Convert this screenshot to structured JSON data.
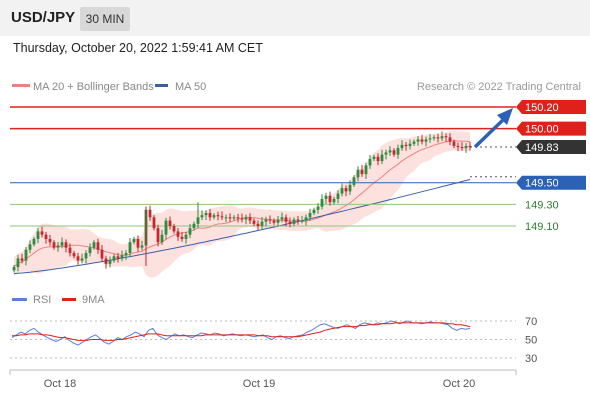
{
  "header": {
    "symbol": "USD/JPY",
    "timeframe": "30 MIN"
  },
  "datetime": "Thursday, October 20, 2022 1:59:41 AM CET",
  "legend": {
    "ma20_label": "MA 20 + Bollinger Bands",
    "ma50_label": "MA 50"
  },
  "credit": "Research © 2022 Trading Central",
  "colors": {
    "resistance": "#e0201b",
    "pivot": "#2b62b8",
    "support": "#8fc57f",
    "ma20": "#f08080",
    "ma50": "#3a5fa8",
    "bbands": "#fcd9d6",
    "candle_up": "#2e8b3f",
    "candle_down": "#c7262b",
    "rsi": "#5b7fe0",
    "rsi_ma": "#e0201b",
    "arrow": "#2b62b8",
    "current": "#333333"
  },
  "levels": [
    {
      "value": 150.2,
      "label": "150.20",
      "type": "resistance"
    },
    {
      "value": 150.0,
      "label": "150.00",
      "type": "resistance"
    },
    {
      "value": 149.83,
      "label": "149.83",
      "type": "current"
    },
    {
      "value": 149.5,
      "label": "149.50",
      "type": "pivot"
    },
    {
      "value": 149.3,
      "label": "149.30",
      "type": "support"
    },
    {
      "value": 149.1,
      "label": "149.10",
      "type": "support"
    }
  ],
  "chart_data": {
    "type": "candlestick",
    "ylim": [
      148.65,
      150.25
    ],
    "x_ticks": [
      "Oct 18",
      "Oct 19",
      "Oct 20"
    ],
    "closes": [
      148.72,
      148.8,
      148.78,
      148.88,
      148.93,
      148.98,
      149.05,
      149.02,
      148.98,
      148.95,
      148.9,
      148.92,
      148.95,
      148.9,
      148.85,
      148.82,
      148.78,
      148.8,
      148.85,
      148.9,
      148.95,
      148.88,
      148.8,
      148.75,
      148.78,
      148.82,
      148.8,
      148.83,
      148.85,
      148.95,
      148.98,
      148.9,
      148.92,
      149.25,
      149.18,
      149.08,
      148.95,
      149.02,
      149.15,
      149.1,
      149.05,
      149.0,
      148.98,
      149.02,
      149.08,
      149.12,
      149.18,
      149.2,
      149.22,
      149.18,
      149.2,
      149.19,
      149.18,
      149.18,
      149.17,
      149.18,
      149.17,
      149.16,
      149.18,
      149.15,
      149.12,
      149.1,
      149.14,
      149.16,
      149.15,
      149.13,
      149.16,
      149.18,
      149.14,
      149.12,
      149.16,
      149.15,
      149.15,
      149.18,
      149.22,
      149.25,
      149.28,
      149.35,
      149.38,
      149.32,
      149.35,
      149.4,
      149.45,
      149.42,
      149.48,
      149.55,
      149.62,
      149.58,
      149.66,
      149.72,
      149.74,
      149.7,
      149.76,
      149.78,
      149.8,
      149.76,
      149.82,
      149.85,
      149.84,
      149.86,
      149.88,
      149.9,
      149.88,
      149.9,
      149.91,
      149.92,
      149.91,
      149.93,
      149.92,
      149.88,
      149.84,
      149.83,
      149.82,
      149.84,
      149.83
    ],
    "ma20_start": 148.72,
    "ma20_end": 149.84,
    "ma50_start": 148.66,
    "ma50_end": 149.53,
    "rsi_panel": {
      "title_rsi": "RSI",
      "title_ma": "9MA",
      "ylim": [
        20,
        80
      ],
      "ticks": [
        70,
        50,
        30
      ],
      "rsi": [
        52,
        55,
        58,
        56,
        60,
        62,
        58,
        55,
        52,
        50,
        48,
        50,
        53,
        49,
        46,
        44,
        47,
        50,
        53,
        55,
        51,
        47,
        45,
        48,
        52,
        50,
        53,
        55,
        58,
        56,
        53,
        60,
        62,
        55,
        52,
        50,
        53,
        56,
        54,
        55,
        53,
        52,
        55,
        57,
        56,
        55,
        57,
        56,
        54,
        55,
        56,
        55,
        54,
        55,
        54,
        53,
        54,
        55,
        52,
        50,
        53,
        54,
        52,
        51,
        53,
        54,
        55,
        58,
        60,
        63,
        66,
        67,
        65,
        63,
        62,
        64,
        66,
        64,
        62,
        66,
        68,
        67,
        66,
        68,
        67,
        68,
        70,
        69,
        67,
        69,
        70,
        68,
        68,
        67,
        68,
        69,
        68,
        68,
        67,
        66,
        62,
        60,
        62,
        61,
        62
      ],
      "rsi_ma": [
        54,
        54,
        55,
        55,
        56,
        56,
        56,
        55,
        55,
        54,
        53,
        52,
        52,
        51,
        50,
        49,
        49,
        49,
        50,
        50,
        50,
        49,
        49,
        49,
        50,
        50,
        51,
        52,
        53,
        54,
        55,
        56,
        56,
        56,
        55,
        54,
        54,
        54,
        54,
        54,
        54,
        54,
        54,
        54,
        55,
        55,
        55,
        55,
        55,
        55,
        55,
        55,
        55,
        55,
        55,
        55,
        54,
        54,
        54,
        53,
        53,
        53,
        53,
        53,
        53,
        53,
        54,
        55,
        56,
        57,
        58,
        60,
        61,
        62,
        63,
        64,
        64,
        64,
        64,
        65,
        65,
        66,
        66,
        66,
        67,
        67,
        67,
        68,
        68,
        68,
        68,
        68,
        68,
        68,
        68,
        68,
        68,
        68,
        68,
        67,
        67,
        66,
        66,
        65,
        64
      ]
    }
  }
}
